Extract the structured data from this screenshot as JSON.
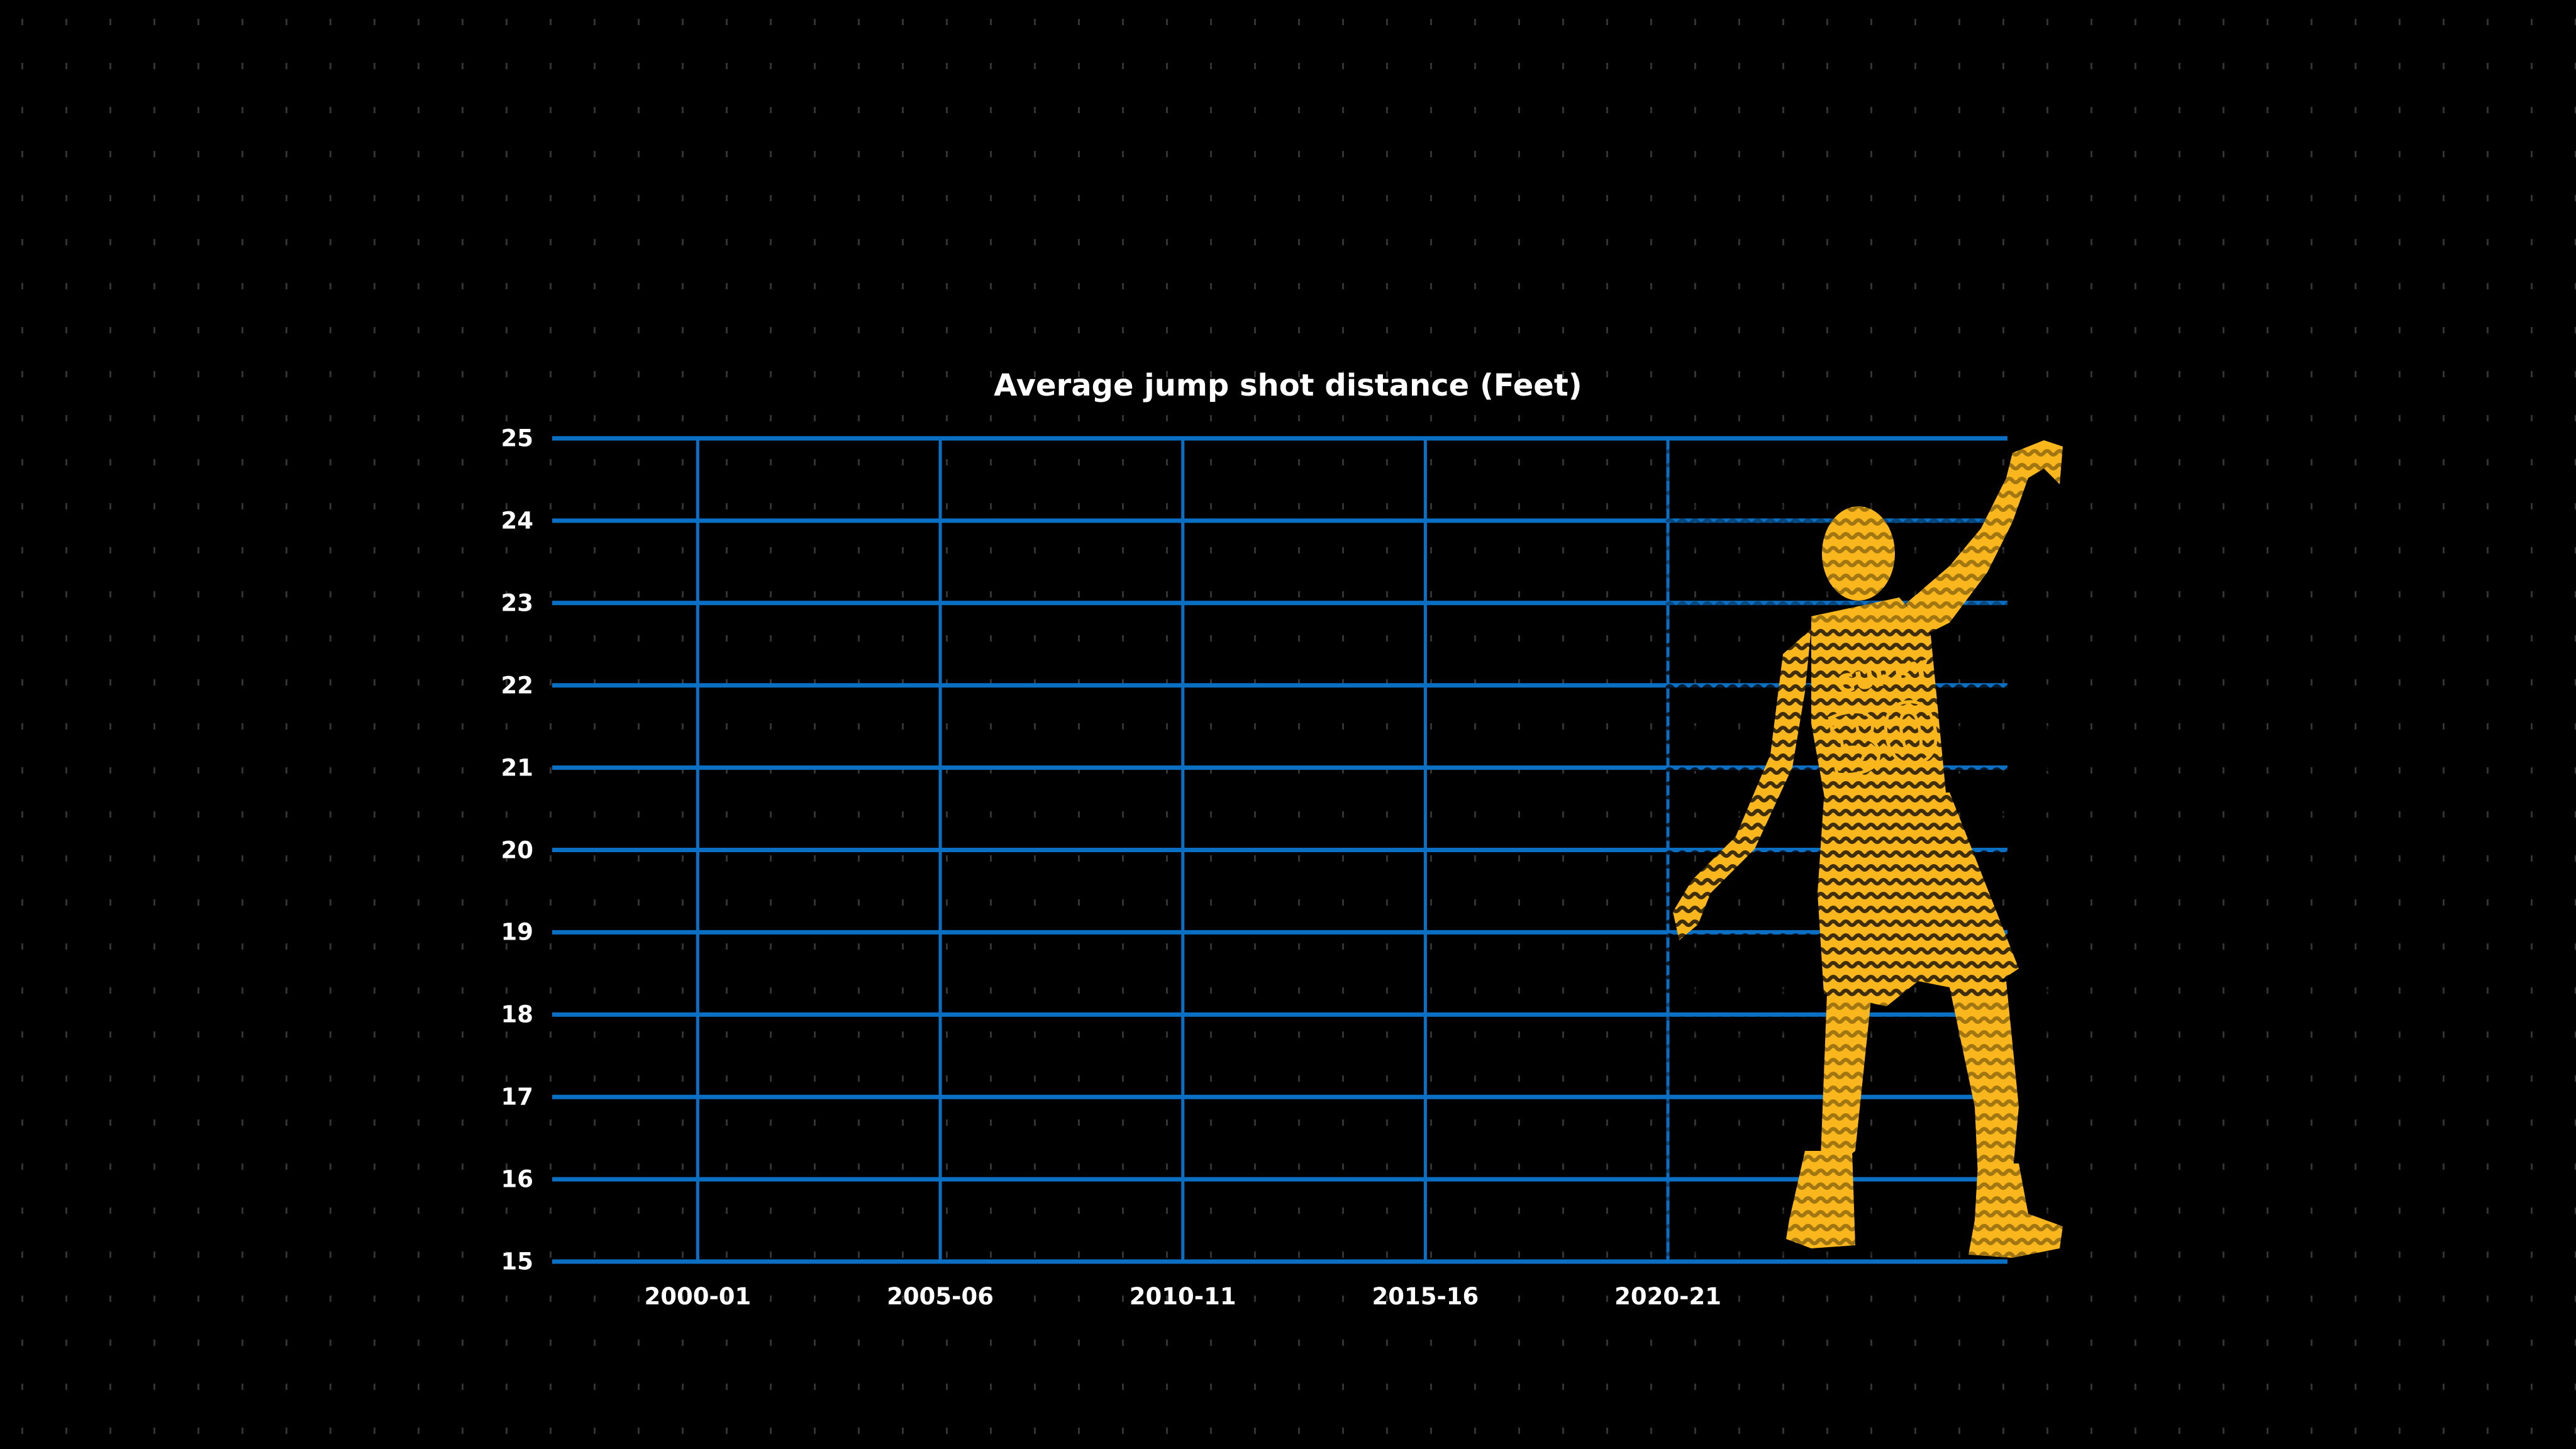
{
  "chart_data": {
    "type": "line",
    "title": "Average jump shot distance (Feet)",
    "xlabel": "",
    "ylabel": "",
    "x_ticks": [
      "2000-01",
      "2005-06",
      "2010-11",
      "2015-16",
      "2020-21"
    ],
    "xlim": [
      "1997-98",
      "2027-28"
    ],
    "y_ticks": [
      15,
      16,
      17,
      18,
      19,
      20,
      21,
      22,
      23,
      24,
      25
    ],
    "ylim": [
      15,
      25
    ],
    "grid": true,
    "series": [],
    "colors": {
      "grid": "#0b6fc4",
      "background": "#000000",
      "illustration": "#f9b71d",
      "text": "#ffffff"
    }
  },
  "illustration": {
    "jersey_number": "30",
    "jersey_name": "CURRY"
  }
}
